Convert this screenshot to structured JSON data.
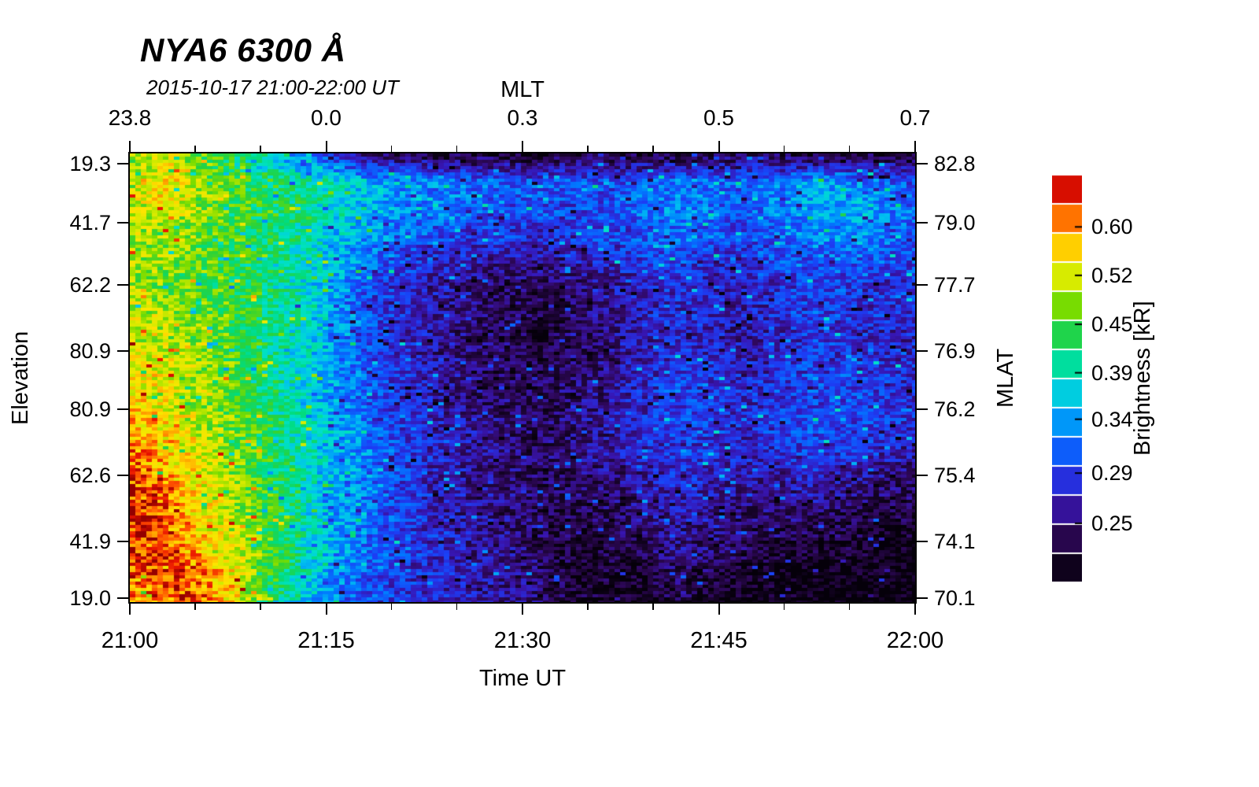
{
  "title": "NYA6 6300 Å",
  "subtitle": "2015-10-17 21:00-22:00 UT",
  "axes": {
    "top": {
      "label": "MLT",
      "ticks": [
        "23.8",
        "0.0",
        "0.3",
        "0.5",
        "0.7"
      ],
      "fractions": [
        0,
        0.25,
        0.5,
        0.75,
        1
      ]
    },
    "bottom": {
      "label": "Time UT",
      "ticks": [
        "21:00",
        "21:15",
        "21:30",
        "21:45",
        "22:00"
      ],
      "fractions": [
        0,
        0.25,
        0.5,
        0.75,
        1
      ]
    },
    "left": {
      "label": "Elevation",
      "ticks": [
        "19.3",
        "41.7",
        "62.2",
        "80.9",
        "80.9",
        "62.6",
        "41.9",
        "19.0"
      ],
      "fractions": [
        0.023,
        0.154,
        0.293,
        0.44,
        0.57,
        0.718,
        0.865,
        0.991
      ]
    },
    "right": {
      "label": "MLAT",
      "ticks": [
        "82.8",
        "79.0",
        "77.7",
        "76.9",
        "76.2",
        "75.4",
        "74.1",
        "70.1"
      ],
      "fractions": [
        0.023,
        0.154,
        0.293,
        0.44,
        0.57,
        0.718,
        0.865,
        0.991
      ]
    }
  },
  "colorbar": {
    "label": "Brightness [kR]",
    "tick_labels": [
      "0.60",
      "0.52",
      "0.45",
      "0.39",
      "0.34",
      "0.29",
      "0.25"
    ],
    "tick_values": [
      0.6,
      0.52,
      0.45,
      0.39,
      0.34,
      0.29,
      0.25
    ],
    "vmin": 0.21,
    "vmax": 0.7,
    "scale": "log",
    "segments": 14
  },
  "chart_data": {
    "type": "heatmap",
    "title": "NYA6 6300 Å",
    "subtitle": "2015-10-17 21:00-22:00 UT",
    "x_label": "Time UT",
    "x_ticks": [
      "21:00",
      "21:15",
      "21:30",
      "21:45",
      "22:00"
    ],
    "x2_label": "MLT",
    "x2_ticks": [
      "23.8",
      "0.0",
      "0.3",
      "0.5",
      "0.7"
    ],
    "y_label": "Elevation",
    "y_ticks": [
      "19.3",
      "41.7",
      "62.2",
      "80.9",
      "80.9",
      "62.6",
      "41.9",
      "19.0"
    ],
    "y2_label": "MLAT",
    "y2_ticks": [
      "82.8",
      "79.0",
      "77.7",
      "76.9",
      "76.2",
      "75.4",
      "74.1",
      "70.1"
    ],
    "value_label": "Brightness [kR]",
    "value_scale": "log",
    "value_range": [
      0.21,
      0.7
    ],
    "grid_description": "Brightness in kR; rows top-to-bottom span elevation 19.3 -> 80.9 -> 19.0 (MLAT 82.8 -> 70.1); columns left-to-right span 21:00 -> 22:00 UT in 2.5 min steps",
    "values_kR": [
      [
        0.48,
        0.52,
        0.46,
        0.42,
        0.38,
        0.32,
        0.27,
        0.24,
        0.23,
        0.22,
        0.23,
        0.22,
        0.22,
        0.23,
        0.22,
        0.23,
        0.22,
        0.23,
        0.24,
        0.23,
        0.22,
        0.23,
        0.23,
        0.22
      ],
      [
        0.52,
        0.57,
        0.5,
        0.46,
        0.43,
        0.41,
        0.39,
        0.36,
        0.34,
        0.33,
        0.32,
        0.31,
        0.31,
        0.31,
        0.3,
        0.31,
        0.33,
        0.32,
        0.31,
        0.33,
        0.35,
        0.34,
        0.32,
        0.3
      ],
      [
        0.5,
        0.52,
        0.48,
        0.45,
        0.43,
        0.41,
        0.38,
        0.35,
        0.33,
        0.32,
        0.31,
        0.3,
        0.3,
        0.29,
        0.3,
        0.31,
        0.33,
        0.32,
        0.3,
        0.32,
        0.34,
        0.35,
        0.33,
        0.31
      ],
      [
        0.5,
        0.49,
        0.47,
        0.45,
        0.42,
        0.4,
        0.36,
        0.33,
        0.31,
        0.29,
        0.28,
        0.28,
        0.27,
        0.28,
        0.29,
        0.3,
        0.31,
        0.3,
        0.29,
        0.31,
        0.32,
        0.33,
        0.32,
        0.3
      ],
      [
        0.5,
        0.48,
        0.46,
        0.44,
        0.42,
        0.39,
        0.35,
        0.31,
        0.29,
        0.27,
        0.26,
        0.25,
        0.25,
        0.26,
        0.27,
        0.28,
        0.29,
        0.28,
        0.28,
        0.29,
        0.3,
        0.3,
        0.29,
        0.29
      ],
      [
        0.51,
        0.49,
        0.47,
        0.45,
        0.42,
        0.39,
        0.34,
        0.3,
        0.28,
        0.26,
        0.25,
        0.24,
        0.235,
        0.24,
        0.26,
        0.27,
        0.28,
        0.27,
        0.27,
        0.28,
        0.29,
        0.29,
        0.28,
        0.28
      ],
      [
        0.52,
        0.5,
        0.48,
        0.45,
        0.42,
        0.38,
        0.34,
        0.3,
        0.27,
        0.26,
        0.245,
        0.24,
        0.23,
        0.24,
        0.25,
        0.27,
        0.28,
        0.27,
        0.26,
        0.28,
        0.29,
        0.28,
        0.28,
        0.27
      ],
      [
        0.54,
        0.52,
        0.49,
        0.46,
        0.42,
        0.38,
        0.34,
        0.3,
        0.28,
        0.26,
        0.25,
        0.24,
        0.235,
        0.24,
        0.25,
        0.27,
        0.29,
        0.28,
        0.27,
        0.28,
        0.29,
        0.29,
        0.28,
        0.28
      ],
      [
        0.56,
        0.54,
        0.5,
        0.46,
        0.42,
        0.38,
        0.34,
        0.31,
        0.28,
        0.27,
        0.25,
        0.24,
        0.24,
        0.25,
        0.26,
        0.28,
        0.3,
        0.29,
        0.28,
        0.29,
        0.3,
        0.3,
        0.29,
        0.28
      ],
      [
        0.58,
        0.55,
        0.51,
        0.47,
        0.43,
        0.39,
        0.35,
        0.31,
        0.29,
        0.27,
        0.26,
        0.25,
        0.24,
        0.25,
        0.26,
        0.28,
        0.3,
        0.29,
        0.28,
        0.29,
        0.3,
        0.29,
        0.29,
        0.28
      ],
      [
        0.61,
        0.57,
        0.52,
        0.48,
        0.43,
        0.39,
        0.35,
        0.32,
        0.29,
        0.27,
        0.26,
        0.25,
        0.24,
        0.25,
        0.26,
        0.27,
        0.29,
        0.28,
        0.27,
        0.28,
        0.29,
        0.28,
        0.27,
        0.26
      ],
      [
        0.64,
        0.6,
        0.54,
        0.49,
        0.44,
        0.4,
        0.35,
        0.32,
        0.29,
        0.27,
        0.26,
        0.25,
        0.24,
        0.24,
        0.25,
        0.26,
        0.28,
        0.27,
        0.26,
        0.26,
        0.27,
        0.26,
        0.25,
        0.24
      ],
      [
        0.68,
        0.63,
        0.56,
        0.5,
        0.45,
        0.4,
        0.35,
        0.32,
        0.29,
        0.27,
        0.26,
        0.25,
        0.24,
        0.24,
        0.24,
        0.25,
        0.27,
        0.26,
        0.25,
        0.25,
        0.25,
        0.24,
        0.23,
        0.23
      ],
      [
        0.66,
        0.65,
        0.58,
        0.52,
        0.46,
        0.4,
        0.35,
        0.32,
        0.29,
        0.28,
        0.26,
        0.25,
        0.24,
        0.23,
        0.23,
        0.24,
        0.26,
        0.25,
        0.24,
        0.23,
        0.23,
        0.23,
        0.22,
        0.22
      ],
      [
        0.62,
        0.66,
        0.62,
        0.55,
        0.47,
        0.4,
        0.34,
        0.31,
        0.29,
        0.28,
        0.27,
        0.26,
        0.25,
        0.23,
        0.23,
        0.23,
        0.25,
        0.24,
        0.23,
        0.22,
        0.22,
        0.22,
        0.22,
        0.215
      ],
      [
        0.6,
        0.62,
        0.64,
        0.56,
        0.44,
        0.37,
        0.33,
        0.3,
        0.29,
        0.28,
        0.27,
        0.26,
        0.25,
        0.23,
        0.22,
        0.22,
        0.23,
        0.22,
        0.22,
        0.215,
        0.215,
        0.21,
        0.21,
        0.21
      ]
    ]
  }
}
